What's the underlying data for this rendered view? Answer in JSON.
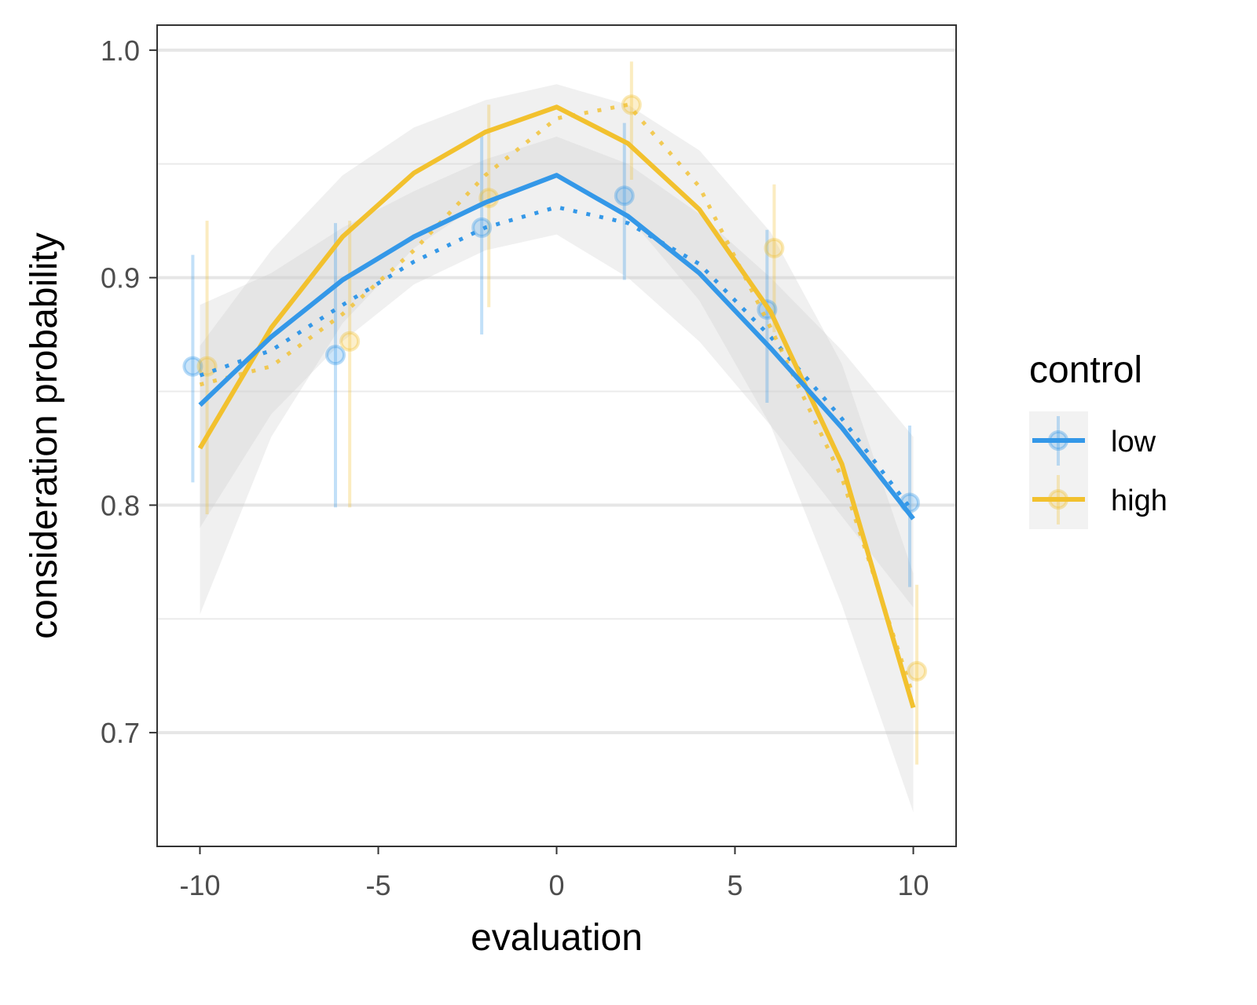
{
  "chart_data": {
    "type": "line",
    "xlabel": "evaluation",
    "ylabel": "consideration probability",
    "xlim": [
      -11.2,
      11.2
    ],
    "ylim": [
      0.65,
      1.011
    ],
    "x_ticks": [
      -10,
      -5,
      0,
      5,
      10
    ],
    "x_tick_labels": [
      "-10",
      "-5",
      "0",
      "5",
      "10"
    ],
    "y_ticks": [
      0.7,
      0.8,
      0.9,
      1.0
    ],
    "y_tick_labels": [
      "0.7",
      "0.8",
      "0.9",
      "1.0"
    ],
    "y_minor_grid": [
      0.75,
      0.85,
      0.95
    ],
    "grid": "horizontal",
    "legend": {
      "title": "control",
      "placement": "right",
      "entries": [
        "low",
        "high"
      ]
    },
    "colors": {
      "low": "#3498e8",
      "high": "#f2c12e",
      "ribbon": "#cccccc"
    },
    "series": [
      {
        "name": "low",
        "fit": {
          "x": [
            -10,
            -8,
            -6,
            -4,
            -2,
            0,
            2,
            4,
            6,
            8,
            10
          ],
          "y": [
            0.844,
            0.874,
            0.899,
            0.918,
            0.933,
            0.945,
            0.927,
            0.902,
            0.869,
            0.834,
            0.794
          ],
          "lower": [
            0.79,
            0.84,
            0.872,
            0.897,
            0.912,
            0.919,
            0.9,
            0.872,
            0.835,
            0.795,
            0.755
          ],
          "upper": [
            0.888,
            0.902,
            0.922,
            0.938,
            0.952,
            0.962,
            0.95,
            0.928,
            0.9,
            0.868,
            0.83
          ]
        },
        "dotted": {
          "x": [
            -10,
            -8,
            -6,
            -4,
            -2,
            0,
            2,
            4,
            6,
            8,
            10
          ],
          "y": [
            0.857,
            0.868,
            0.888,
            0.907,
            0.922,
            0.931,
            0.924,
            0.906,
            0.874,
            0.838,
            0.797
          ]
        },
        "points": {
          "x": [
            -10.2,
            -6.2,
            -2.1,
            1.9,
            5.9,
            9.9
          ],
          "y": [
            0.861,
            0.866,
            0.922,
            0.936,
            0.886,
            0.801
          ],
          "lower": [
            0.81,
            0.799,
            0.875,
            0.899,
            0.845,
            0.764
          ],
          "upper": [
            0.91,
            0.924,
            0.963,
            0.968,
            0.921,
            0.835
          ]
        }
      },
      {
        "name": "high",
        "fit": {
          "x": [
            -10,
            -8,
            -6,
            -4,
            -2,
            0,
            2,
            4,
            6,
            8,
            10
          ],
          "y": [
            0.825,
            0.878,
            0.918,
            0.946,
            0.964,
            0.975,
            0.959,
            0.93,
            0.885,
            0.818,
            0.711
          ],
          "lower": [
            0.752,
            0.83,
            0.88,
            0.913,
            0.934,
            0.945,
            0.927,
            0.89,
            0.835,
            0.756,
            0.665
          ],
          "upper": [
            0.87,
            0.912,
            0.945,
            0.966,
            0.978,
            0.985,
            0.976,
            0.956,
            0.92,
            0.862,
            0.77
          ]
        },
        "dotted": {
          "x": [
            -10,
            -8,
            -6,
            -4,
            -2,
            0,
            2,
            4,
            6,
            8,
            10
          ],
          "y": [
            0.853,
            0.861,
            0.884,
            0.912,
            0.945,
            0.97,
            0.976,
            0.94,
            0.878,
            0.812,
            0.716
          ]
        },
        "points": {
          "x": [
            -9.8,
            -5.8,
            -1.9,
            2.1,
            6.1,
            10.1
          ],
          "y": [
            0.861,
            0.872,
            0.935,
            0.976,
            0.913,
            0.727
          ],
          "lower": [
            0.796,
            0.799,
            0.887,
            0.943,
            0.876,
            0.686
          ],
          "upper": [
            0.925,
            0.925,
            0.976,
            0.995,
            0.941,
            0.765
          ]
        }
      }
    ]
  }
}
